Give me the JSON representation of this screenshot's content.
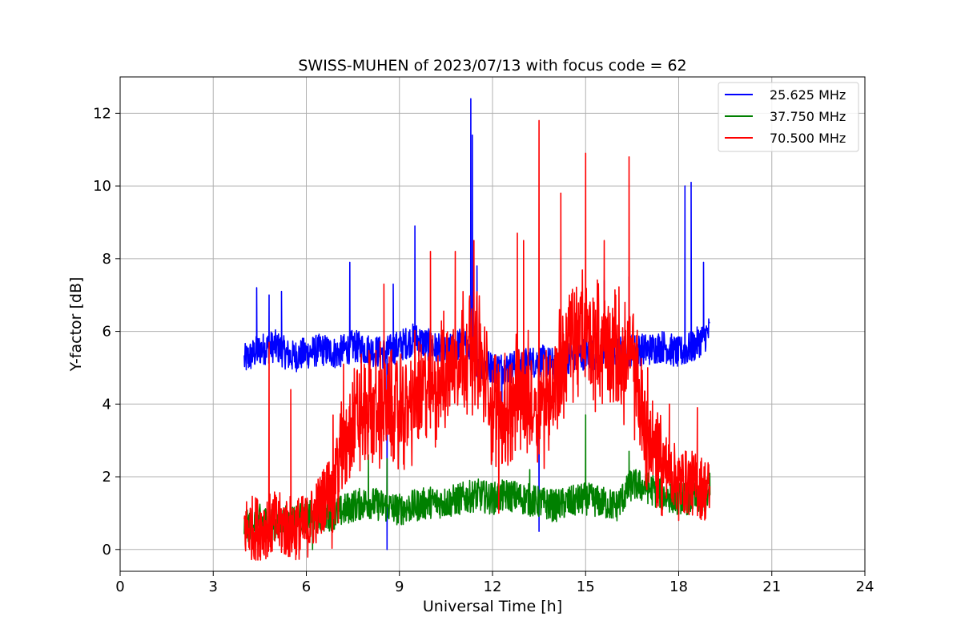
{
  "chart_data": {
    "type": "line",
    "title": "SWISS-MUHEN of 2023/07/13 with focus code = 62",
    "xlabel": "Universal Time [h]",
    "ylabel": "Y-factor [dB]",
    "xlim": [
      0,
      24
    ],
    "ylim": [
      -0.6,
      13.0
    ],
    "xticks": [
      0,
      3,
      6,
      9,
      12,
      15,
      18,
      21,
      24
    ],
    "yticks": [
      0,
      2,
      4,
      6,
      8,
      10,
      12
    ],
    "grid": true,
    "legend_position": "top-right",
    "x": [
      4.0,
      4.5,
      5.0,
      5.5,
      6.0,
      6.5,
      7.0,
      7.5,
      8.0,
      8.5,
      9.0,
      9.5,
      10.0,
      10.5,
      11.0,
      11.5,
      12.0,
      12.5,
      13.0,
      13.5,
      14.0,
      14.5,
      15.0,
      15.5,
      16.0,
      16.5,
      17.0,
      17.5,
      18.0,
      18.5,
      19.0
    ],
    "series": [
      {
        "name": "25.625 MHz",
        "color": "#0000ff",
        "values": [
          5.2,
          5.5,
          5.6,
          5.3,
          5.4,
          5.5,
          5.4,
          5.6,
          5.5,
          5.4,
          5.6,
          5.8,
          5.6,
          5.4,
          5.7,
          5.2,
          5.0,
          5.0,
          5.1,
          5.2,
          5.1,
          5.3,
          5.4,
          5.3,
          5.4,
          5.5,
          5.5,
          5.6,
          5.4,
          5.6,
          6.0
        ],
        "spikes": [
          [
            4.4,
            7.2
          ],
          [
            4.8,
            7.0
          ],
          [
            5.2,
            7.1
          ],
          [
            7.4,
            7.9
          ],
          [
            8.8,
            7.3
          ],
          [
            9.5,
            8.9
          ],
          [
            11.3,
            12.4
          ],
          [
            11.35,
            11.4
          ],
          [
            11.5,
            7.8
          ],
          [
            15.6,
            7.4
          ],
          [
            16.4,
            7.5
          ],
          [
            18.2,
            10.0
          ],
          [
            18.4,
            10.1
          ],
          [
            18.8,
            7.9
          ],
          [
            8.6,
            0.0
          ],
          [
            13.5,
            0.5
          ],
          [
            12.3,
            3.0
          ]
        ]
      },
      {
        "name": "37.750 MHz",
        "color": "#008000",
        "values": [
          0.6,
          0.8,
          0.7,
          0.8,
          0.9,
          0.9,
          1.0,
          1.2,
          1.3,
          1.2,
          1.1,
          1.2,
          1.3,
          1.3,
          1.4,
          1.5,
          1.4,
          1.5,
          1.4,
          1.3,
          1.2,
          1.3,
          1.4,
          1.3,
          1.2,
          1.8,
          1.7,
          1.5,
          1.4,
          1.4,
          1.5
        ],
        "spikes": [
          [
            8.0,
            2.6
          ],
          [
            8.6,
            2.5
          ],
          [
            13.2,
            2.2
          ],
          [
            15.0,
            3.7
          ],
          [
            16.4,
            2.7
          ],
          [
            19.0,
            2.1
          ],
          [
            6.2,
            0.0
          ]
        ]
      },
      {
        "name": "70.500 MHz",
        "color": "#ff0000",
        "values": [
          0.6,
          0.6,
          0.7,
          0.6,
          0.6,
          1.3,
          2.2,
          3.6,
          3.8,
          4.0,
          3.7,
          4.2,
          4.4,
          4.8,
          5.5,
          5.6,
          3.8,
          3.9,
          4.2,
          4.0,
          4.5,
          5.8,
          6.0,
          5.6,
          5.4,
          5.2,
          3.0,
          2.4,
          1.9,
          1.8,
          1.6
        ],
        "spikes": [
          [
            4.8,
            5.7
          ],
          [
            5.5,
            4.4
          ],
          [
            7.2,
            5.1
          ],
          [
            8.5,
            7.3
          ],
          [
            10.0,
            8.2
          ],
          [
            10.8,
            8.2
          ],
          [
            11.4,
            8.5
          ],
          [
            12.8,
            8.7
          ],
          [
            13.0,
            8.5
          ],
          [
            13.5,
            11.8
          ],
          [
            14.2,
            9.8
          ],
          [
            15.0,
            10.9
          ],
          [
            15.6,
            8.5
          ],
          [
            16.4,
            10.8
          ],
          [
            17.0,
            5.0
          ],
          [
            17.7,
            4.0
          ],
          [
            18.6,
            3.9
          ],
          [
            12.2,
            1.0
          ],
          [
            18.0,
            0.8
          ],
          [
            5.8,
            0.0
          ]
        ]
      }
    ]
  }
}
